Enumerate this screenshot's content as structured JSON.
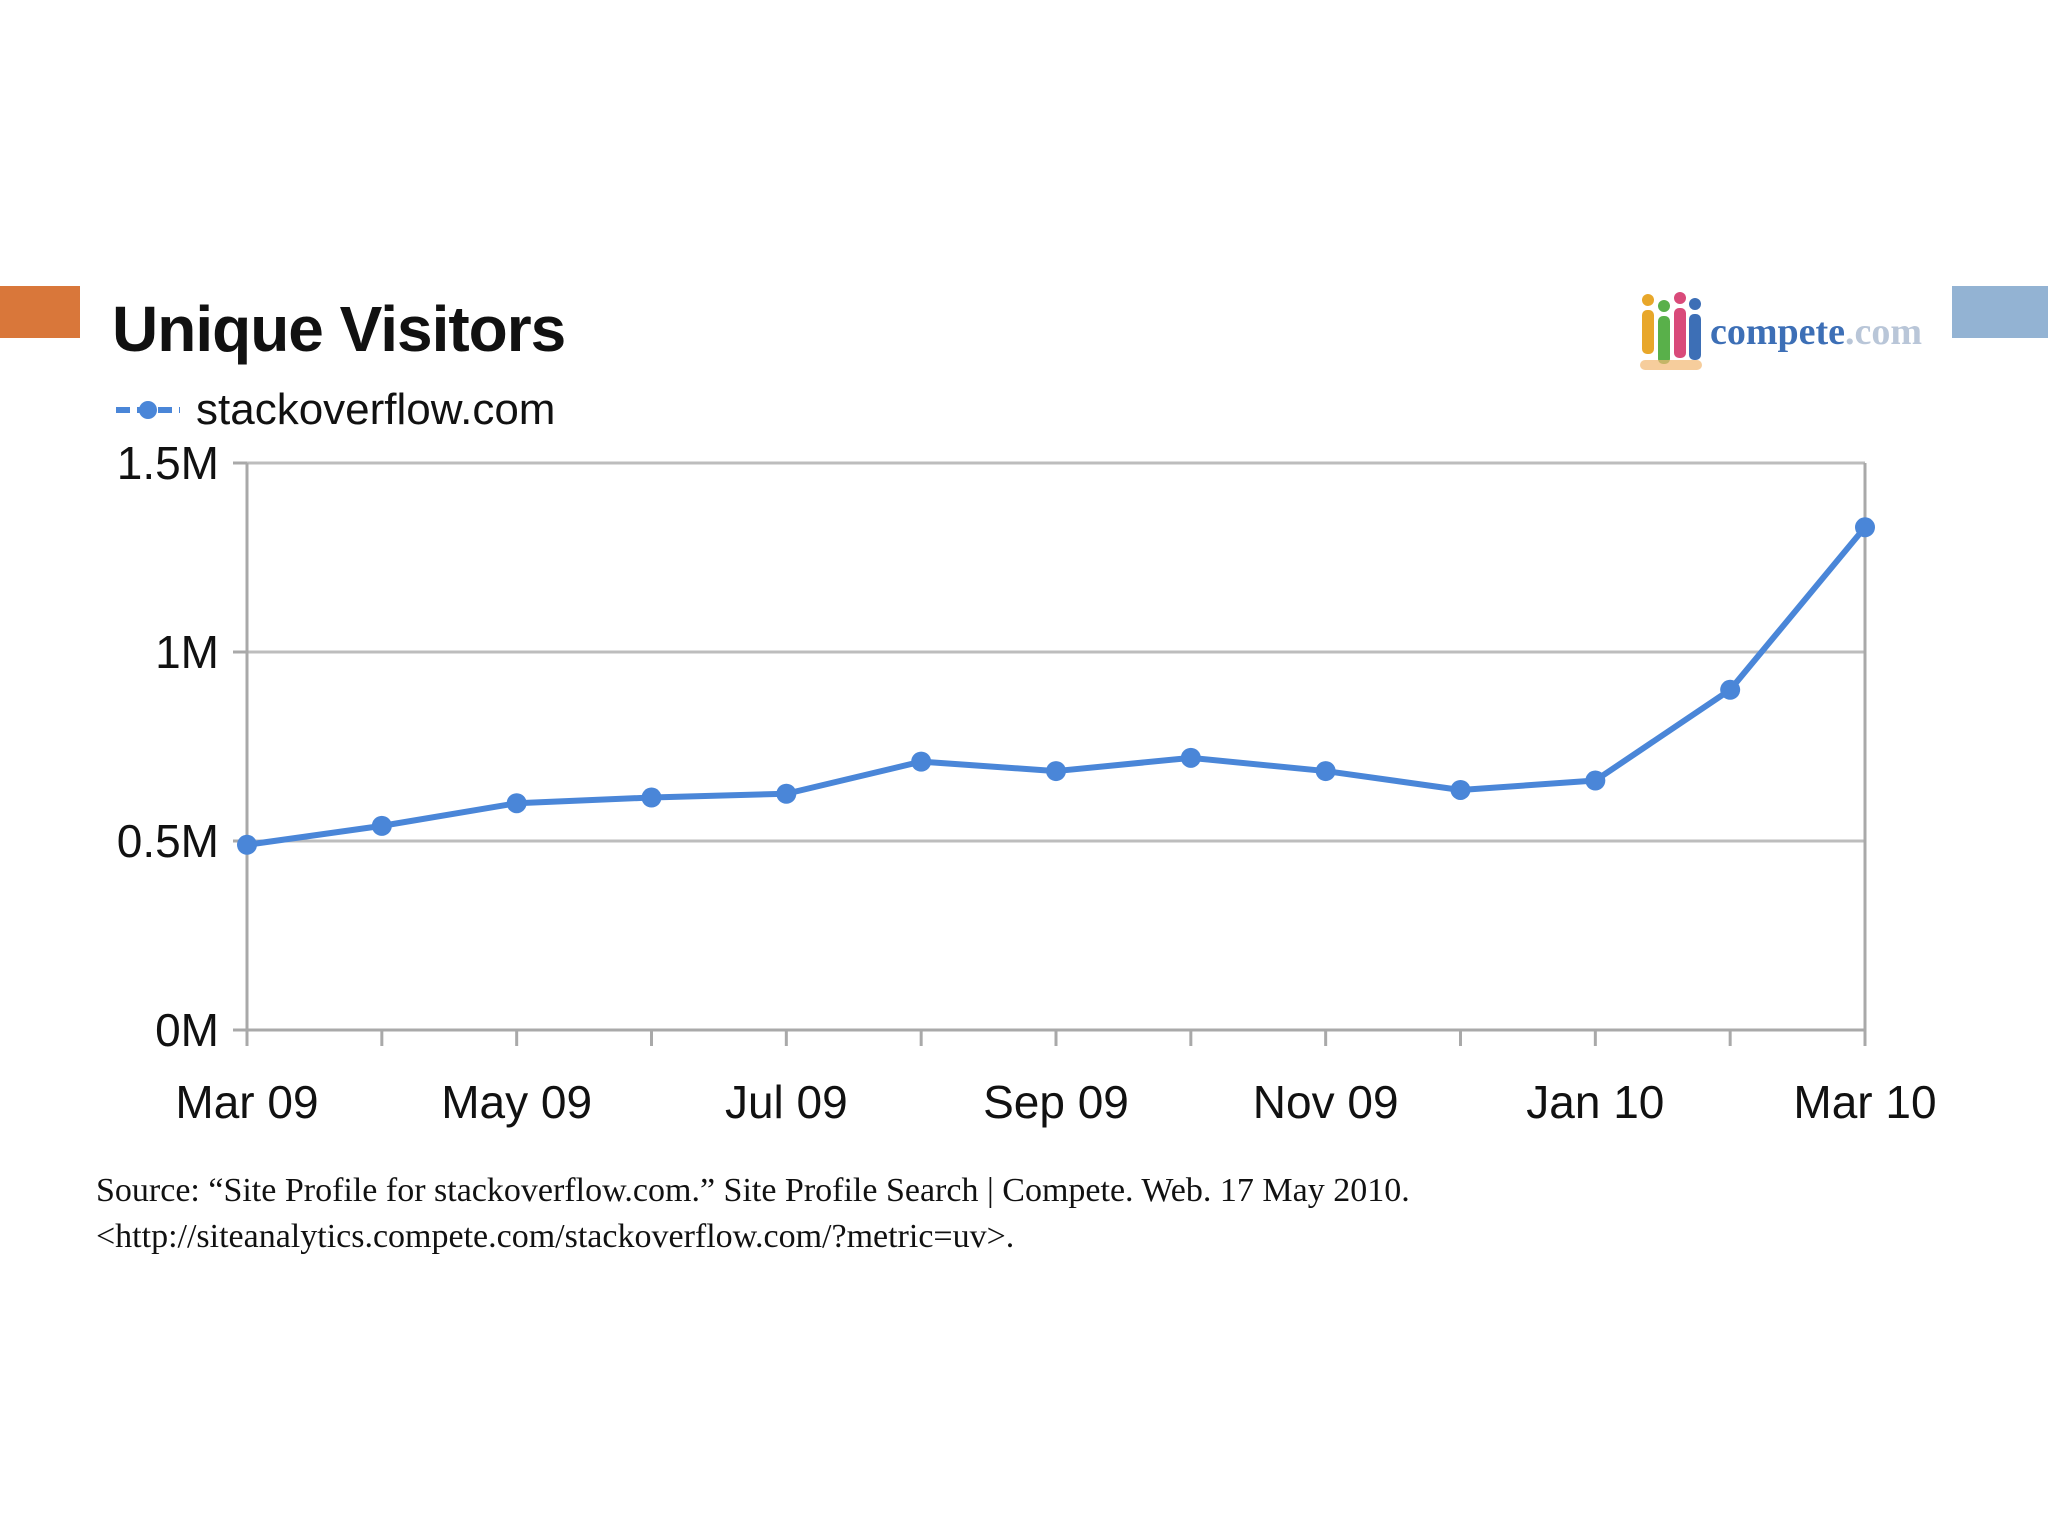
{
  "colors": {
    "accent_left": "#d9773a",
    "accent_right": "#93b3d3",
    "series_line": "#4a86d8",
    "grid": "#bdbdbd",
    "axis": "#a9a9a9",
    "text": "#111111",
    "brand_blue": "#3d6fb6",
    "brand_light": "#b9c6d8"
  },
  "legend": {
    "icon": "line-with-dot-icon"
  },
  "brand": {
    "icon": "people-logo-icon",
    "name": "compete",
    "tld": ".com"
  },
  "chart_data": {
    "type": "line",
    "title": "Unique Visitors",
    "xlabel": "",
    "ylabel": "",
    "ylim": [
      0,
      1500000
    ],
    "grid": true,
    "legend_position": "top-left",
    "y_ticks": [
      {
        "value": 0,
        "label": "0M"
      },
      {
        "value": 500000,
        "label": "0.5M"
      },
      {
        "value": 1000000,
        "label": "1M"
      },
      {
        "value": 1500000,
        "label": "1.5M"
      }
    ],
    "categories": [
      "Mar 09",
      "Apr 09",
      "May 09",
      "Jun 09",
      "Jul 09",
      "Aug 09",
      "Sep 09",
      "Oct 09",
      "Nov 09",
      "Dec 09",
      "Jan 10",
      "Feb 10",
      "Mar 10"
    ],
    "x_tick_labels": [
      {
        "index": 0,
        "label": "Mar 09"
      },
      {
        "index": 2,
        "label": "May 09"
      },
      {
        "index": 4,
        "label": "Jul 09"
      },
      {
        "index": 6,
        "label": "Sep 09"
      },
      {
        "index": 8,
        "label": "Nov 09"
      },
      {
        "index": 10,
        "label": "Jan 10"
      },
      {
        "index": 12,
        "label": "Mar 10"
      }
    ],
    "series": [
      {
        "name": "stackoverflow.com",
        "values": [
          490000,
          540000,
          600000,
          615000,
          625000,
          710000,
          685000,
          720000,
          685000,
          635000,
          660000,
          900000,
          1330000
        ]
      }
    ]
  },
  "source": {
    "line1": "Source: “Site Profile for stackoverflow.com.” Site Profile Search | Compete. Web. 17 May 2010.",
    "line2": "<http://siteanalytics.compete.com/stackoverflow.com/?metric=uv>."
  }
}
